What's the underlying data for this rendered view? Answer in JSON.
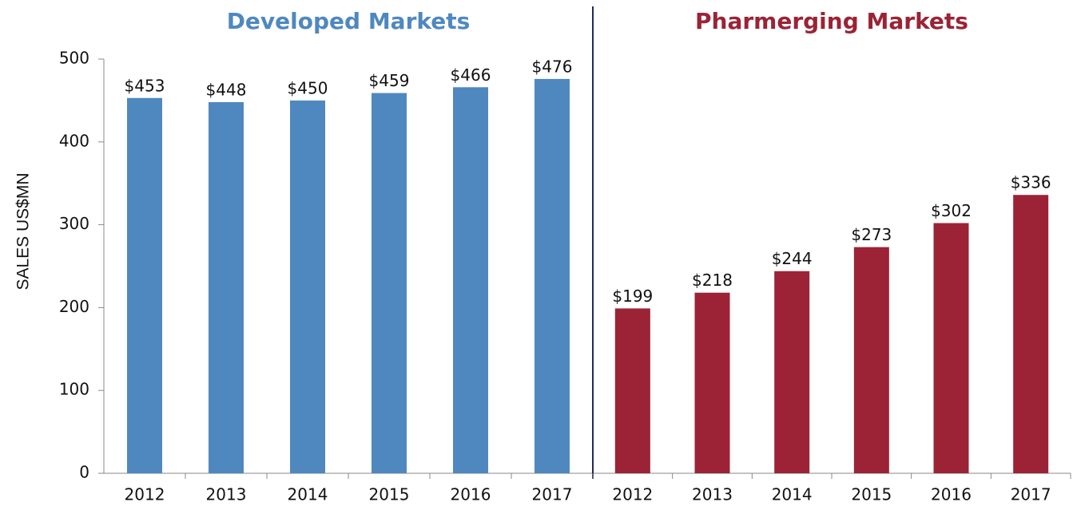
{
  "chart_data": {
    "type": "bar",
    "y_label": "SALES US$MN",
    "ylim": [
      0,
      500
    ],
    "yticks": [
      0,
      100,
      200,
      300,
      400,
      500
    ],
    "grid": false,
    "groups": [
      {
        "title": "Developed Markets",
        "color": "#4f88bf",
        "categories": [
          "2012",
          "2013",
          "2014",
          "2015",
          "2016",
          "2017"
        ],
        "values": [
          453,
          448,
          450,
          459,
          466,
          476
        ],
        "value_labels": [
          "$453",
          "$448",
          "$450",
          "$459",
          "$466",
          "$476"
        ]
      },
      {
        "title": "Pharmerging Markets",
        "color": "#9b2335",
        "categories": [
          "2012",
          "2013",
          "2014",
          "2015",
          "2016",
          "2017"
        ],
        "values": [
          199,
          218,
          244,
          273,
          302,
          336
        ],
        "value_labels": [
          "$199",
          "$218",
          "$244",
          "$273",
          "$302",
          "$336"
        ]
      }
    ]
  }
}
